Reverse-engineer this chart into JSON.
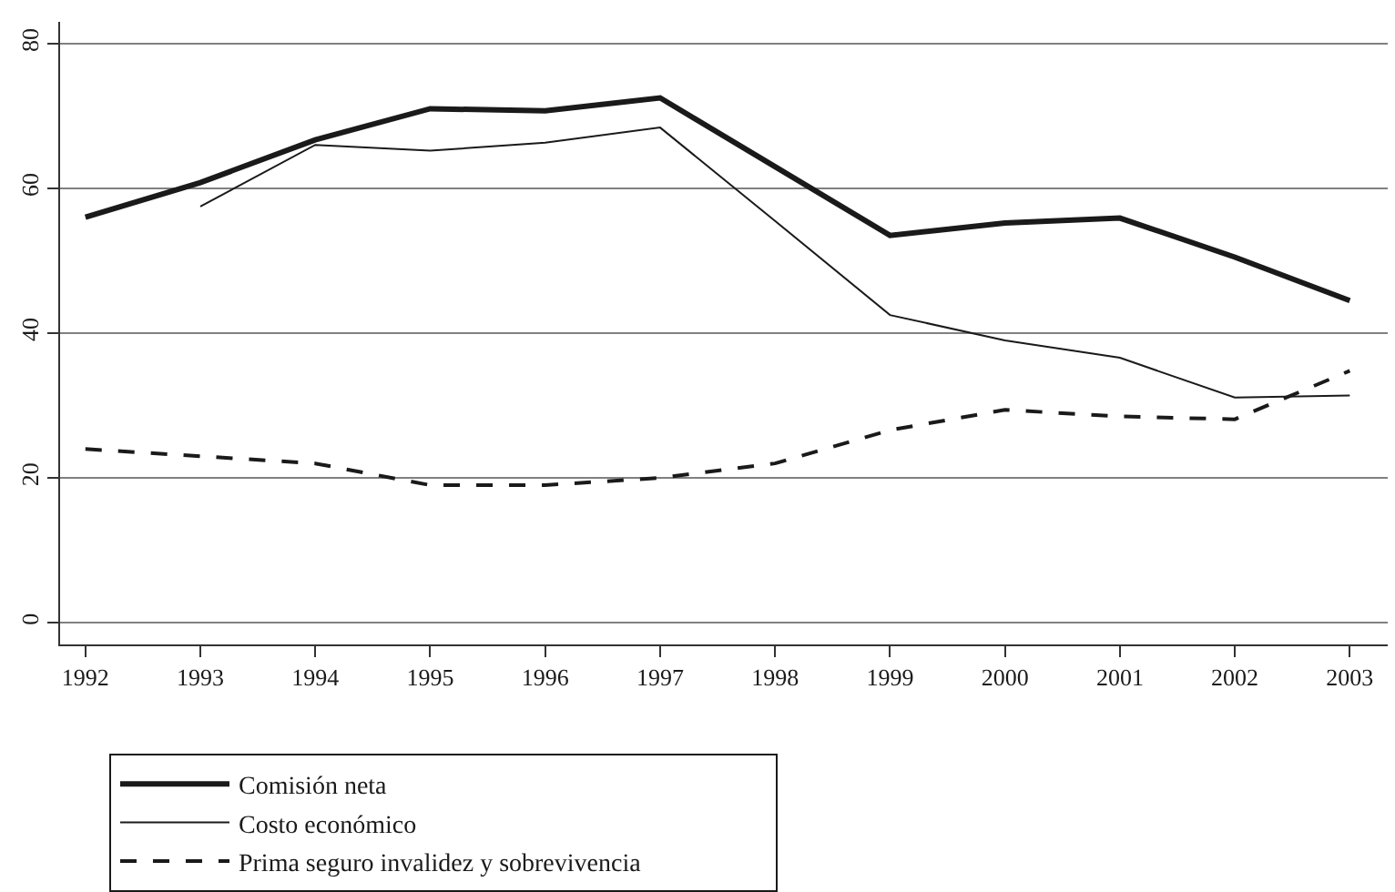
{
  "chart_data": {
    "type": "line",
    "x": [
      1992,
      1993,
      1994,
      1995,
      1996,
      1997,
      1998,
      1999,
      2000,
      2001,
      2002,
      2003
    ],
    "series": [
      {
        "name": "Comisión neta",
        "color": "#1a1a1a",
        "line_style": "solid",
        "values": [
          56,
          60.8,
          66.7,
          71,
          70.7,
          72.5,
          63,
          53.5,
          55.2,
          55.9,
          50.5,
          44.5
        ]
      },
      {
        "name": "Costo económico",
        "color": "#1a1a1a",
        "line_style": "solid",
        "values": [
          null,
          57.5,
          66,
          65.2,
          66.3,
          68.4,
          55.5,
          42.5,
          39,
          36.6,
          31.1,
          31.4
        ]
      },
      {
        "name": "Prima seguro invalidez y sobrevivencia",
        "color": "#1a1a1a",
        "line_style": "dashed",
        "values": [
          24,
          23,
          22,
          19,
          19,
          20,
          22,
          26.6,
          29.4,
          28.5,
          28.1,
          34.8
        ]
      }
    ],
    "xlim": [
      1991.78,
      2003.33
    ],
    "xticks": [
      1992,
      1993,
      1994,
      1995,
      1996,
      1997,
      1998,
      1999,
      2000,
      2001,
      2002,
      2003
    ],
    "ylim": [
      -3,
      83
    ],
    "yticks": [
      0,
      20,
      40,
      60,
      80
    ],
    "grid": "y",
    "legend": "bottom",
    "marker": "none"
  }
}
